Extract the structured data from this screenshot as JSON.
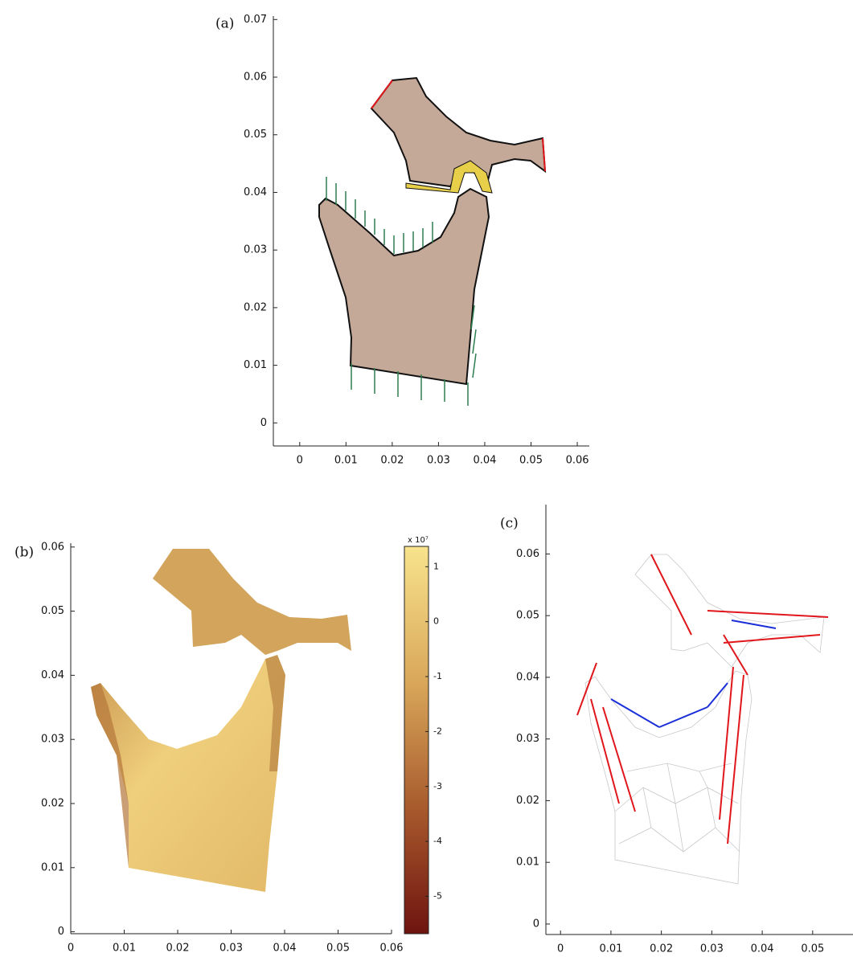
{
  "chart_data": [
    {
      "type": "geometry",
      "label": "(a)",
      "xlim": [
        -0.0057,
        0.0626
      ],
      "ylim": [
        -0.004,
        0.0706
      ],
      "xticks": [
        0,
        0.01,
        0.02,
        0.03,
        0.04,
        0.05,
        0.06
      ],
      "yticks": [
        0,
        0.01,
        0.02,
        0.03,
        0.04,
        0.05,
        0.06,
        0.07
      ]
    },
    {
      "type": "contour",
      "label": "(b)",
      "xlim": [
        0,
        0.06
      ],
      "ylim": [
        -0.0003,
        0.0606
      ],
      "xticks": [
        0,
        0.01,
        0.02,
        0.03,
        0.04,
        0.05,
        0.06
      ],
      "yticks": [
        0,
        0.01,
        0.02,
        0.03,
        0.04,
        0.05,
        0.06
      ],
      "colorbar": {
        "label": "x 10⁷",
        "lim": [
          -5.68,
          1.37
        ],
        "ticks": [
          1,
          0,
          -1,
          -2,
          -3,
          -4,
          -5
        ]
      }
    },
    {
      "type": "mesh",
      "label": "(c)",
      "xlim": [
        -0.0029,
        0.058
      ],
      "ylim": [
        -0.0017,
        0.068
      ],
      "xticks": [
        0,
        0.01,
        0.02,
        0.03,
        0.04,
        0.05
      ],
      "yticks": [
        0,
        0.01,
        0.02,
        0.03,
        0.04,
        0.05,
        0.06
      ]
    }
  ]
}
